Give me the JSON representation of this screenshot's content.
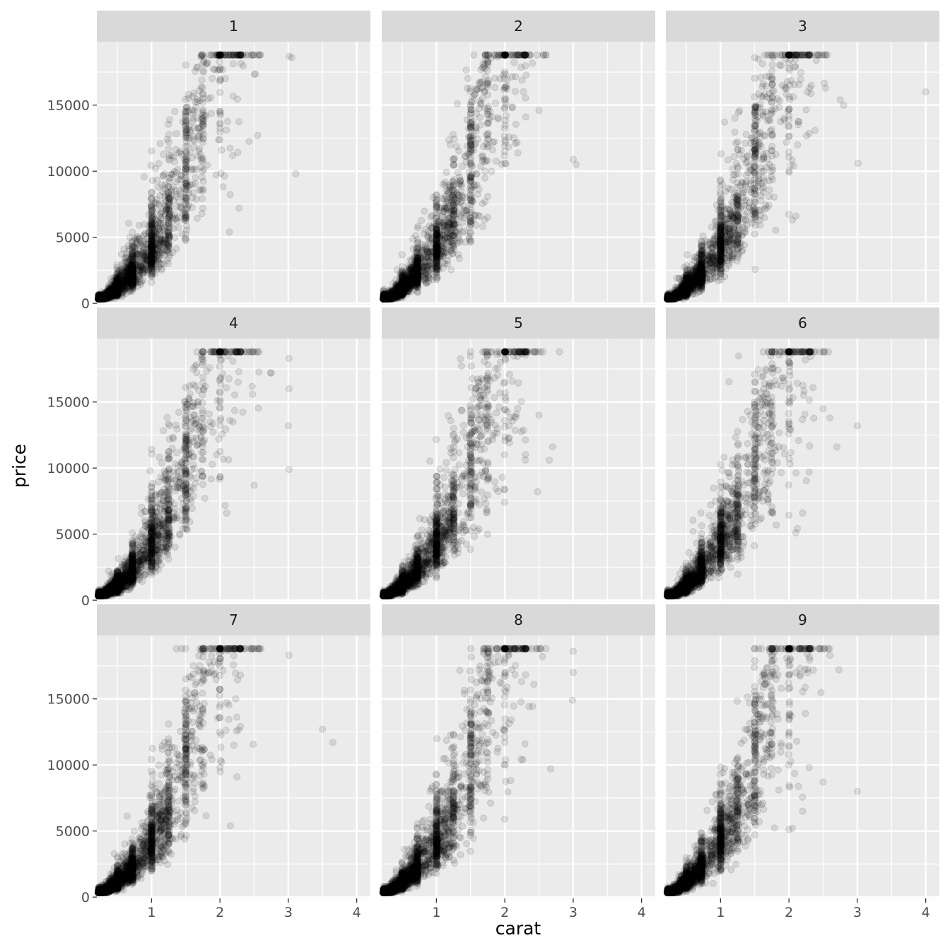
{
  "chart_data": {
    "type": "scatter",
    "facet_by": "",
    "facets": [
      "1",
      "2",
      "3",
      "4",
      "5",
      "6",
      "7",
      "8",
      "9"
    ],
    "xlabel": "carat",
    "ylabel": "price",
    "xlim": [
      0.2,
      4.2
    ],
    "ylim": [
      -100,
      19800
    ],
    "x_ticks": [
      1,
      2,
      3,
      4
    ],
    "y_ticks": [
      0,
      5000,
      10000,
      15000
    ],
    "x_tick_labels": [
      "1",
      "2",
      "3",
      "4"
    ],
    "y_tick_labels": [
      "0",
      "5000",
      "10000",
      "15000"
    ],
    "point_alpha": 0.1,
    "point_color": "#000000",
    "panel_background": "#ebebeb",
    "strip_background": "#d9d9d9",
    "grid": true,
    "outliers": [
      [
        [
          3.01,
          18700
        ],
        [
          3.05,
          18600
        ],
        [
          3.11,
          9800
        ],
        [
          2.28,
          7200
        ],
        [
          2.14,
          5400
        ],
        [
          2.55,
          12700
        ]
      ],
      [
        [
          3.0,
          10900
        ],
        [
          3.04,
          10500
        ],
        [
          2.5,
          14600
        ]
      ],
      [
        [
          4.0,
          16000
        ],
        [
          3.01,
          10600
        ],
        [
          2.75,
          15400
        ],
        [
          2.8,
          15000
        ],
        [
          2.1,
          6600
        ],
        [
          2.05,
          6300
        ],
        [
          2.4,
          18400
        ]
      ],
      [
        [
          3.01,
          18300
        ],
        [
          3.01,
          16000
        ],
        [
          3.0,
          13200
        ],
        [
          3.01,
          9900
        ],
        [
          2.5,
          8700
        ],
        [
          2.74,
          17200
        ],
        [
          2.75,
          17200
        ],
        [
          2.1,
          6600
        ]
      ],
      [
        [
          2.8,
          18800
        ],
        [
          2.7,
          11600
        ],
        [
          2.65,
          10600
        ],
        [
          2.48,
          8200
        ],
        [
          2.5,
          14000
        ]
      ],
      [
        [
          3.0,
          13200
        ],
        [
          2.7,
          11600
        ],
        [
          2.5,
          14500
        ],
        [
          2.2,
          6600
        ],
        [
          2.1,
          5100
        ],
        [
          2.6,
          13800
        ]
      ],
      [
        [
          3.5,
          12700
        ],
        [
          3.65,
          11700
        ],
        [
          3.01,
          18300
        ],
        [
          2.6,
          18800
        ],
        [
          2.25,
          9100
        ],
        [
          2.15,
          5400
        ]
      ],
      [
        [
          3.0,
          18600
        ],
        [
          3.0,
          17000
        ],
        [
          2.99,
          14900
        ],
        [
          2.67,
          9700
        ],
        [
          2.0,
          5900
        ],
        [
          2.55,
          18200
        ]
      ],
      [
        [
          3.0,
          8000
        ],
        [
          2.73,
          17200
        ],
        [
          2.5,
          8700
        ],
        [
          2.2,
          6500
        ],
        [
          2.05,
          5200
        ],
        [
          2.0,
          5100
        ],
        [
          2.6,
          18300
        ]
      ]
    ]
  }
}
